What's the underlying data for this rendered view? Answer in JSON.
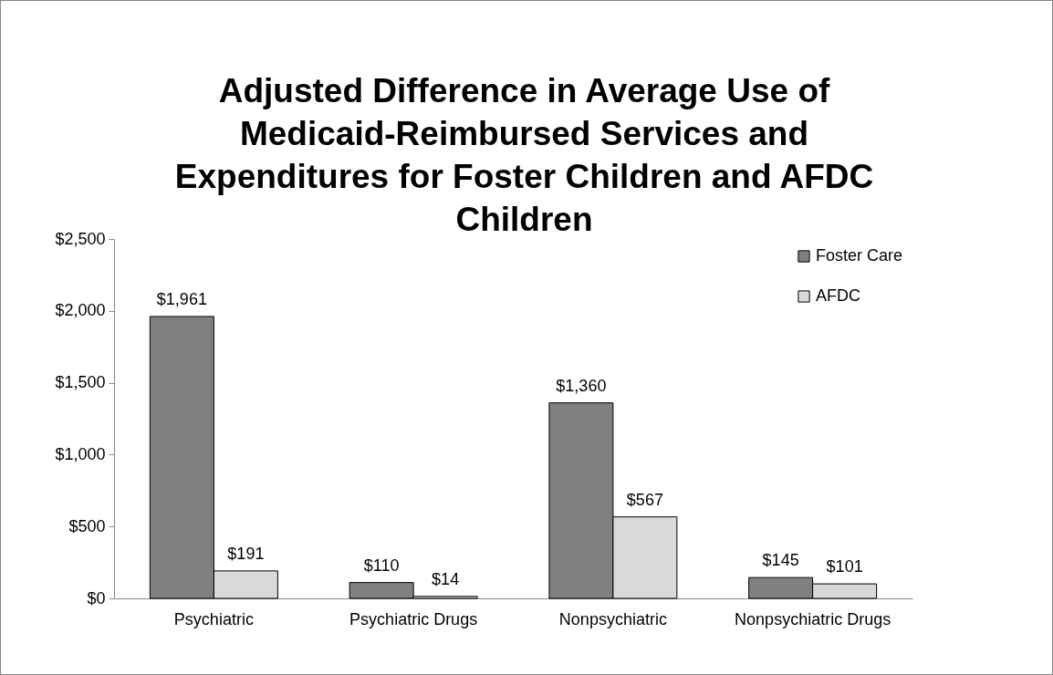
{
  "chart_data": {
    "type": "bar",
    "title": "Adjusted Difference in Average Use of Medicaid-Reimbursed Services and Expenditures for Foster Children and AFDC Children",
    "categories": [
      "Psychiatric",
      "Psychiatric Drugs",
      "Nonpsychiatric",
      "Nonpsychiatric Drugs"
    ],
    "series": [
      {
        "name": "Foster Care",
        "color": "#808080",
        "values": [
          1961,
          110,
          1360,
          145
        ],
        "value_labels": [
          "$1,961",
          "$110",
          "$1,360",
          "$145"
        ]
      },
      {
        "name": "AFDC",
        "color": "#d9d9d9",
        "values": [
          191,
          14,
          567,
          101
        ],
        "value_labels": [
          "$191",
          "$14",
          "$567",
          "$101"
        ]
      }
    ],
    "ylim": [
      0,
      2500
    ],
    "yticks": [
      {
        "value": 0,
        "label": "$0"
      },
      {
        "value": 500,
        "label": "$500"
      },
      {
        "value": 1000,
        "label": "$1,000"
      },
      {
        "value": 1500,
        "label": "$1,500"
      },
      {
        "value": 2000,
        "label": "$2,000"
      },
      {
        "value": 2500,
        "label": "$2,500"
      }
    ],
    "grid": false,
    "legend": "top right"
  }
}
